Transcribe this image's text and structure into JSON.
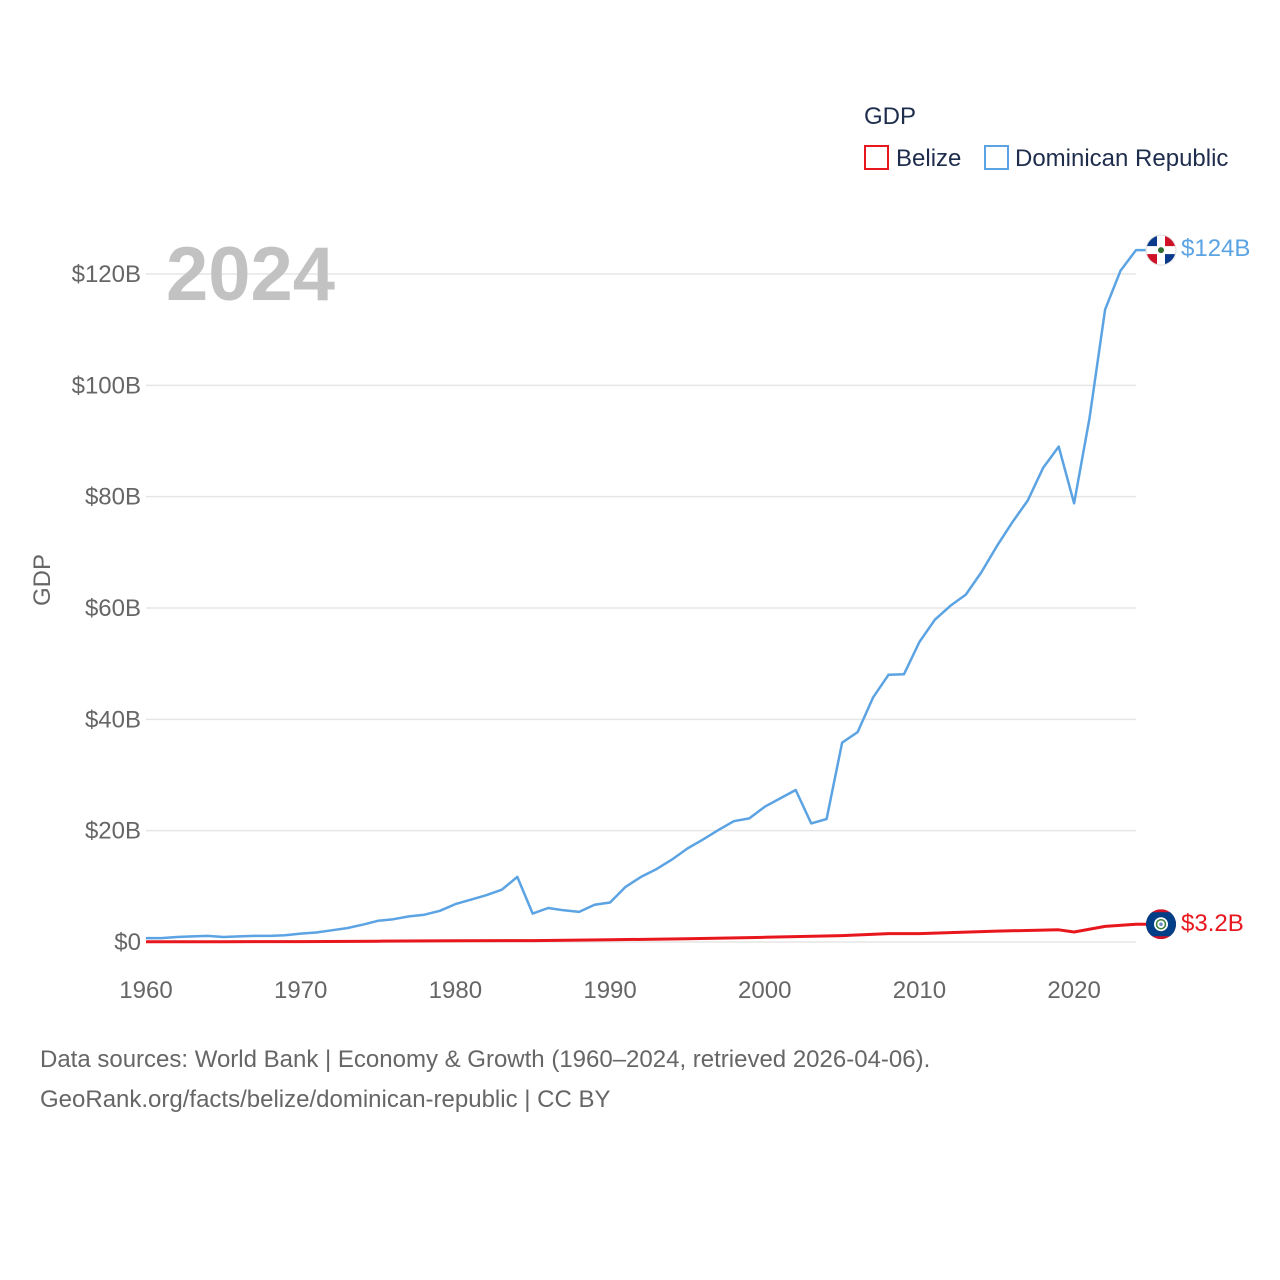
{
  "chart_data": {
    "type": "line",
    "title": "GDP",
    "ylabel": "GDP",
    "xlabel": "",
    "year_label": "2024",
    "xlim": [
      1960,
      2024
    ],
    "ylim": [
      0,
      130
    ],
    "x_ticks": [
      1960,
      1970,
      1980,
      1990,
      2000,
      2010,
      2020
    ],
    "y_ticks": [
      {
        "value": 0,
        "label": "$0"
      },
      {
        "value": 20,
        "label": "$20B"
      },
      {
        "value": 40,
        "label": "$40B"
      },
      {
        "value": 60,
        "label": "$60B"
      },
      {
        "value": 80,
        "label": "$80B"
      },
      {
        "value": 100,
        "label": "$100B"
      },
      {
        "value": 120,
        "label": "$120B"
      }
    ],
    "legend": {
      "title": "GDP",
      "position": "top-right"
    },
    "units": "billion USD",
    "series": [
      {
        "name": "Belize",
        "color": "#e8171e",
        "end_label": "$3.2B",
        "flag": "belize-flag",
        "years": [
          1960,
          1965,
          1970,
          1975,
          1980,
          1985,
          1990,
          1995,
          2000,
          2005,
          2008,
          2010,
          2015,
          2019,
          2020,
          2022,
          2024
        ],
        "values": [
          0.05,
          0.06,
          0.08,
          0.14,
          0.24,
          0.25,
          0.4,
          0.6,
          0.85,
          1.15,
          1.5,
          1.5,
          1.95,
          2.2,
          1.8,
          2.8,
          3.2
        ]
      },
      {
        "name": "Dominican Republic",
        "color": "#5ba3e3",
        "end_label": "$124B",
        "flag": "dominican-republic-flag",
        "years": [
          1960,
          1961,
          1962,
          1963,
          1964,
          1965,
          1966,
          1967,
          1968,
          1969,
          1970,
          1971,
          1972,
          1973,
          1974,
          1975,
          1976,
          1977,
          1978,
          1979,
          1980,
          1981,
          1982,
          1983,
          1984,
          1985,
          1986,
          1987,
          1988,
          1989,
          1990,
          1991,
          1992,
          1993,
          1994,
          1995,
          1996,
          1997,
          1998,
          1999,
          2000,
          2001,
          2002,
          2003,
          2004,
          2005,
          2006,
          2007,
          2008,
          2009,
          2010,
          2011,
          2012,
          2013,
          2014,
          2015,
          2016,
          2017,
          2018,
          2019,
          2020,
          2021,
          2022,
          2023,
          2024
        ],
        "values": [
          0.7,
          0.7,
          0.9,
          1.0,
          1.1,
          0.9,
          1.0,
          1.1,
          1.1,
          1.2,
          1.5,
          1.7,
          2.1,
          2.5,
          3.1,
          3.8,
          4.1,
          4.6,
          4.9,
          5.6,
          6.8,
          7.6,
          8.4,
          9.4,
          11.7,
          5.1,
          6.1,
          5.7,
          5.4,
          6.7,
          7.1,
          9.9,
          11.7,
          13.1,
          14.8,
          16.8,
          18.4,
          20.1,
          21.7,
          22.2,
          24.3,
          25.8,
          27.3,
          21.3,
          22.1,
          35.8,
          37.7,
          43.9,
          48.0,
          48.1,
          53.9,
          57.9,
          60.4,
          62.4,
          66.4,
          71.1,
          75.4,
          79.3,
          85.2,
          89.0,
          78.8,
          94.2,
          113.6,
          120.6,
          124.3
        ]
      }
    ]
  },
  "footer": {
    "line1": "Data sources: World Bank | Economy & Growth (1960–2024, retrieved 2026-04-06).",
    "line2": "GeoRank.org/facts/belize/dominican-republic | CC BY"
  }
}
